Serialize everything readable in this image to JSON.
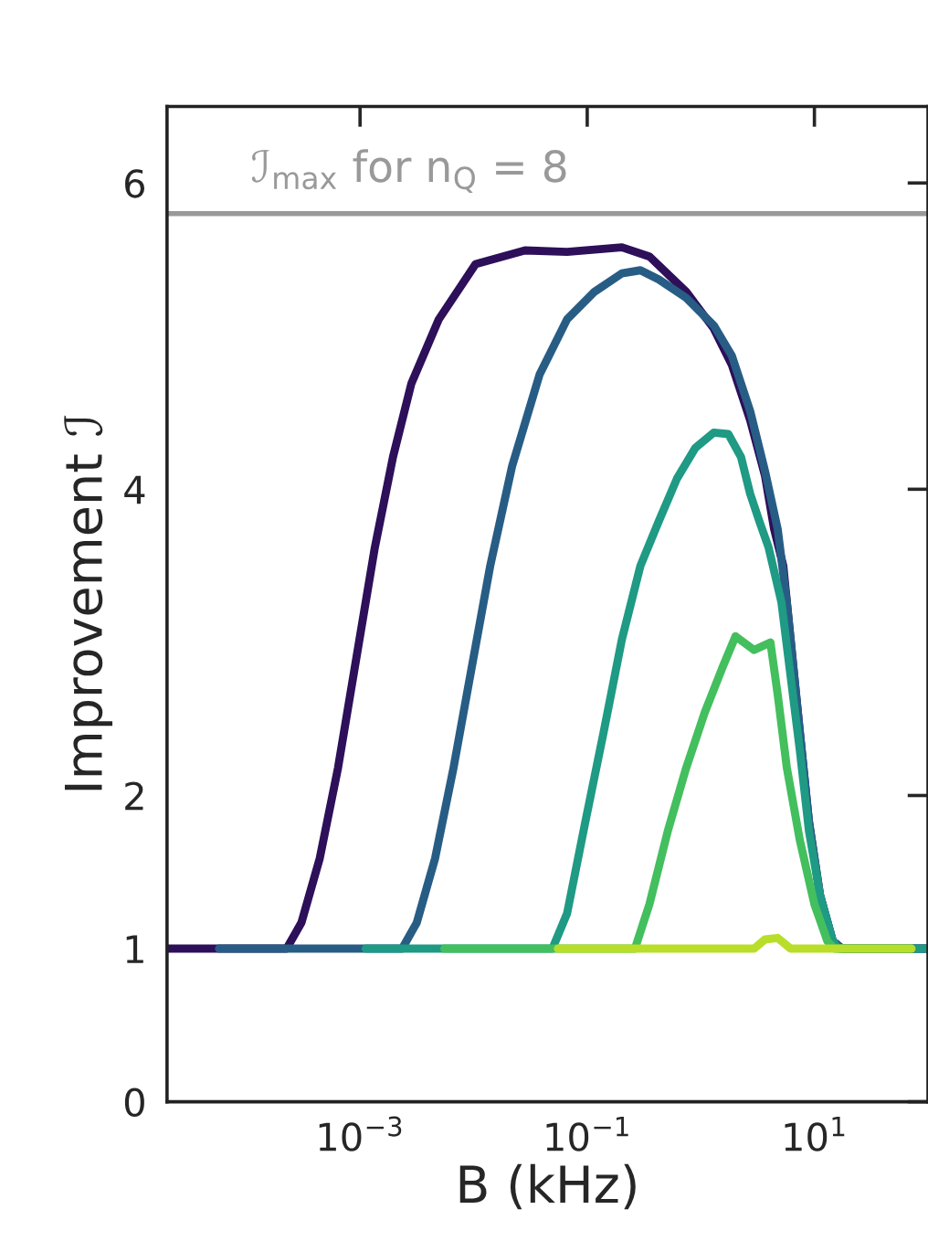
{
  "chart_data": {
    "type": "line",
    "xlabel": "B (kHz)",
    "ylabel": "Improvement ℐ",
    "log": "x",
    "grid": false,
    "legend": false,
    "line_style": "solid",
    "marker": "none",
    "xlim": [
      2e-05,
      100
    ],
    "xticks": [
      {
        "value": 0.001,
        "label": "10$^{−3}$"
      },
      {
        "value": 0.1,
        "label": "10$^{−1}$"
      },
      {
        "value": 10,
        "label": "10$^{1}$"
      }
    ],
    "ylim": [
      0,
      6.5
    ],
    "yticks": [
      0,
      1,
      2,
      4,
      6
    ],
    "ref_lines": [
      {
        "axis": "y",
        "value": 5.8,
        "color": "#999999",
        "line_style": "solid"
      }
    ],
    "annotations": [
      "ℐ$_{max}$ for n$_{Q}$ = 8"
    ],
    "series": [
      {
        "color": "#2d0f5a",
        "x": [
          2e-05,
          0.000226,
          0.000305,
          0.000442,
          0.00064,
          0.000929,
          0.00135,
          0.00195,
          0.00283,
          0.00494,
          0.0104,
          0.0283,
          0.0665,
          0.202,
          0.353,
          0.743,
          1.3,
          1.88,
          2.72,
          3.67,
          4.42,
          5.32,
          6.17,
          7.43,
          8.95,
          11.2,
          14.5,
          17.5,
          100
        ],
        "values": [
          1.0,
          1.0,
          1.17,
          1.59,
          2.18,
          2.9,
          3.62,
          4.21,
          4.69,
          5.11,
          5.47,
          5.56,
          5.55,
          5.58,
          5.52,
          5.29,
          5.05,
          4.81,
          4.45,
          4.09,
          3.74,
          3.5,
          3.02,
          2.42,
          1.83,
          1.35,
          1.05,
          1.0,
          1.0
        ]
      },
      {
        "color": "#275d85",
        "x": [
          5.73e-05,
          0.00235,
          0.00316,
          0.00458,
          0.00665,
          0.00964,
          0.014,
          0.0218,
          0.0381,
          0.0665,
          0.116,
          0.202,
          0.294,
          0.426,
          0.743,
          1.3,
          1.88,
          2.72,
          3.67,
          4.75,
          5.72,
          7.43,
          8.95,
          11.2,
          14.5,
          17.5,
          100
        ],
        "values": [
          1.0,
          1.0,
          1.17,
          1.59,
          2.18,
          2.84,
          3.5,
          4.15,
          4.75,
          5.11,
          5.29,
          5.41,
          5.43,
          5.37,
          5.25,
          5.07,
          4.87,
          4.51,
          4.12,
          3.74,
          3.26,
          2.42,
          1.83,
          1.35,
          1.05,
          1.0,
          1.0
        ]
      },
      {
        "color": "#1f9a84",
        "x": [
          0.00112,
          0.0494,
          0.0665,
          0.0964,
          0.14,
          0.202,
          0.294,
          0.426,
          0.617,
          0.895,
          1.3,
          1.75,
          2.26,
          2.72,
          3.28,
          3.95,
          5.13,
          6.17,
          7.43,
          8.95,
          11.2,
          14.5,
          16.2,
          100
        ],
        "values": [
          1.0,
          1.0,
          1.23,
          1.83,
          2.42,
          3.02,
          3.5,
          3.79,
          4.07,
          4.27,
          4.37,
          4.36,
          4.21,
          3.97,
          3.79,
          3.62,
          3.26,
          2.78,
          2.3,
          1.77,
          1.35,
          1.05,
          1.0,
          1.0
        ]
      },
      {
        "color": "#43bf5e",
        "x": [
          0.00552,
          0.263,
          0.353,
          0.513,
          0.743,
          1.08,
          1.56,
          2.02,
          2.94,
          4.1,
          4.75,
          5.72,
          7.43,
          10.0,
          13.0,
          15.0,
          71.6
        ],
        "values": [
          1.0,
          1.0,
          1.29,
          1.77,
          2.18,
          2.54,
          2.84,
          3.04,
          2.95,
          3.0,
          2.66,
          2.18,
          1.71,
          1.29,
          1.05,
          1.0,
          1.0
        ]
      },
      {
        "color": "#b8de29",
        "x": [
          0.0552,
          2.94,
          3.67,
          4.75,
          6.17,
          71.6
        ],
        "values": [
          1.0,
          1.0,
          1.06,
          1.07,
          1.0,
          1.0
        ]
      }
    ]
  }
}
